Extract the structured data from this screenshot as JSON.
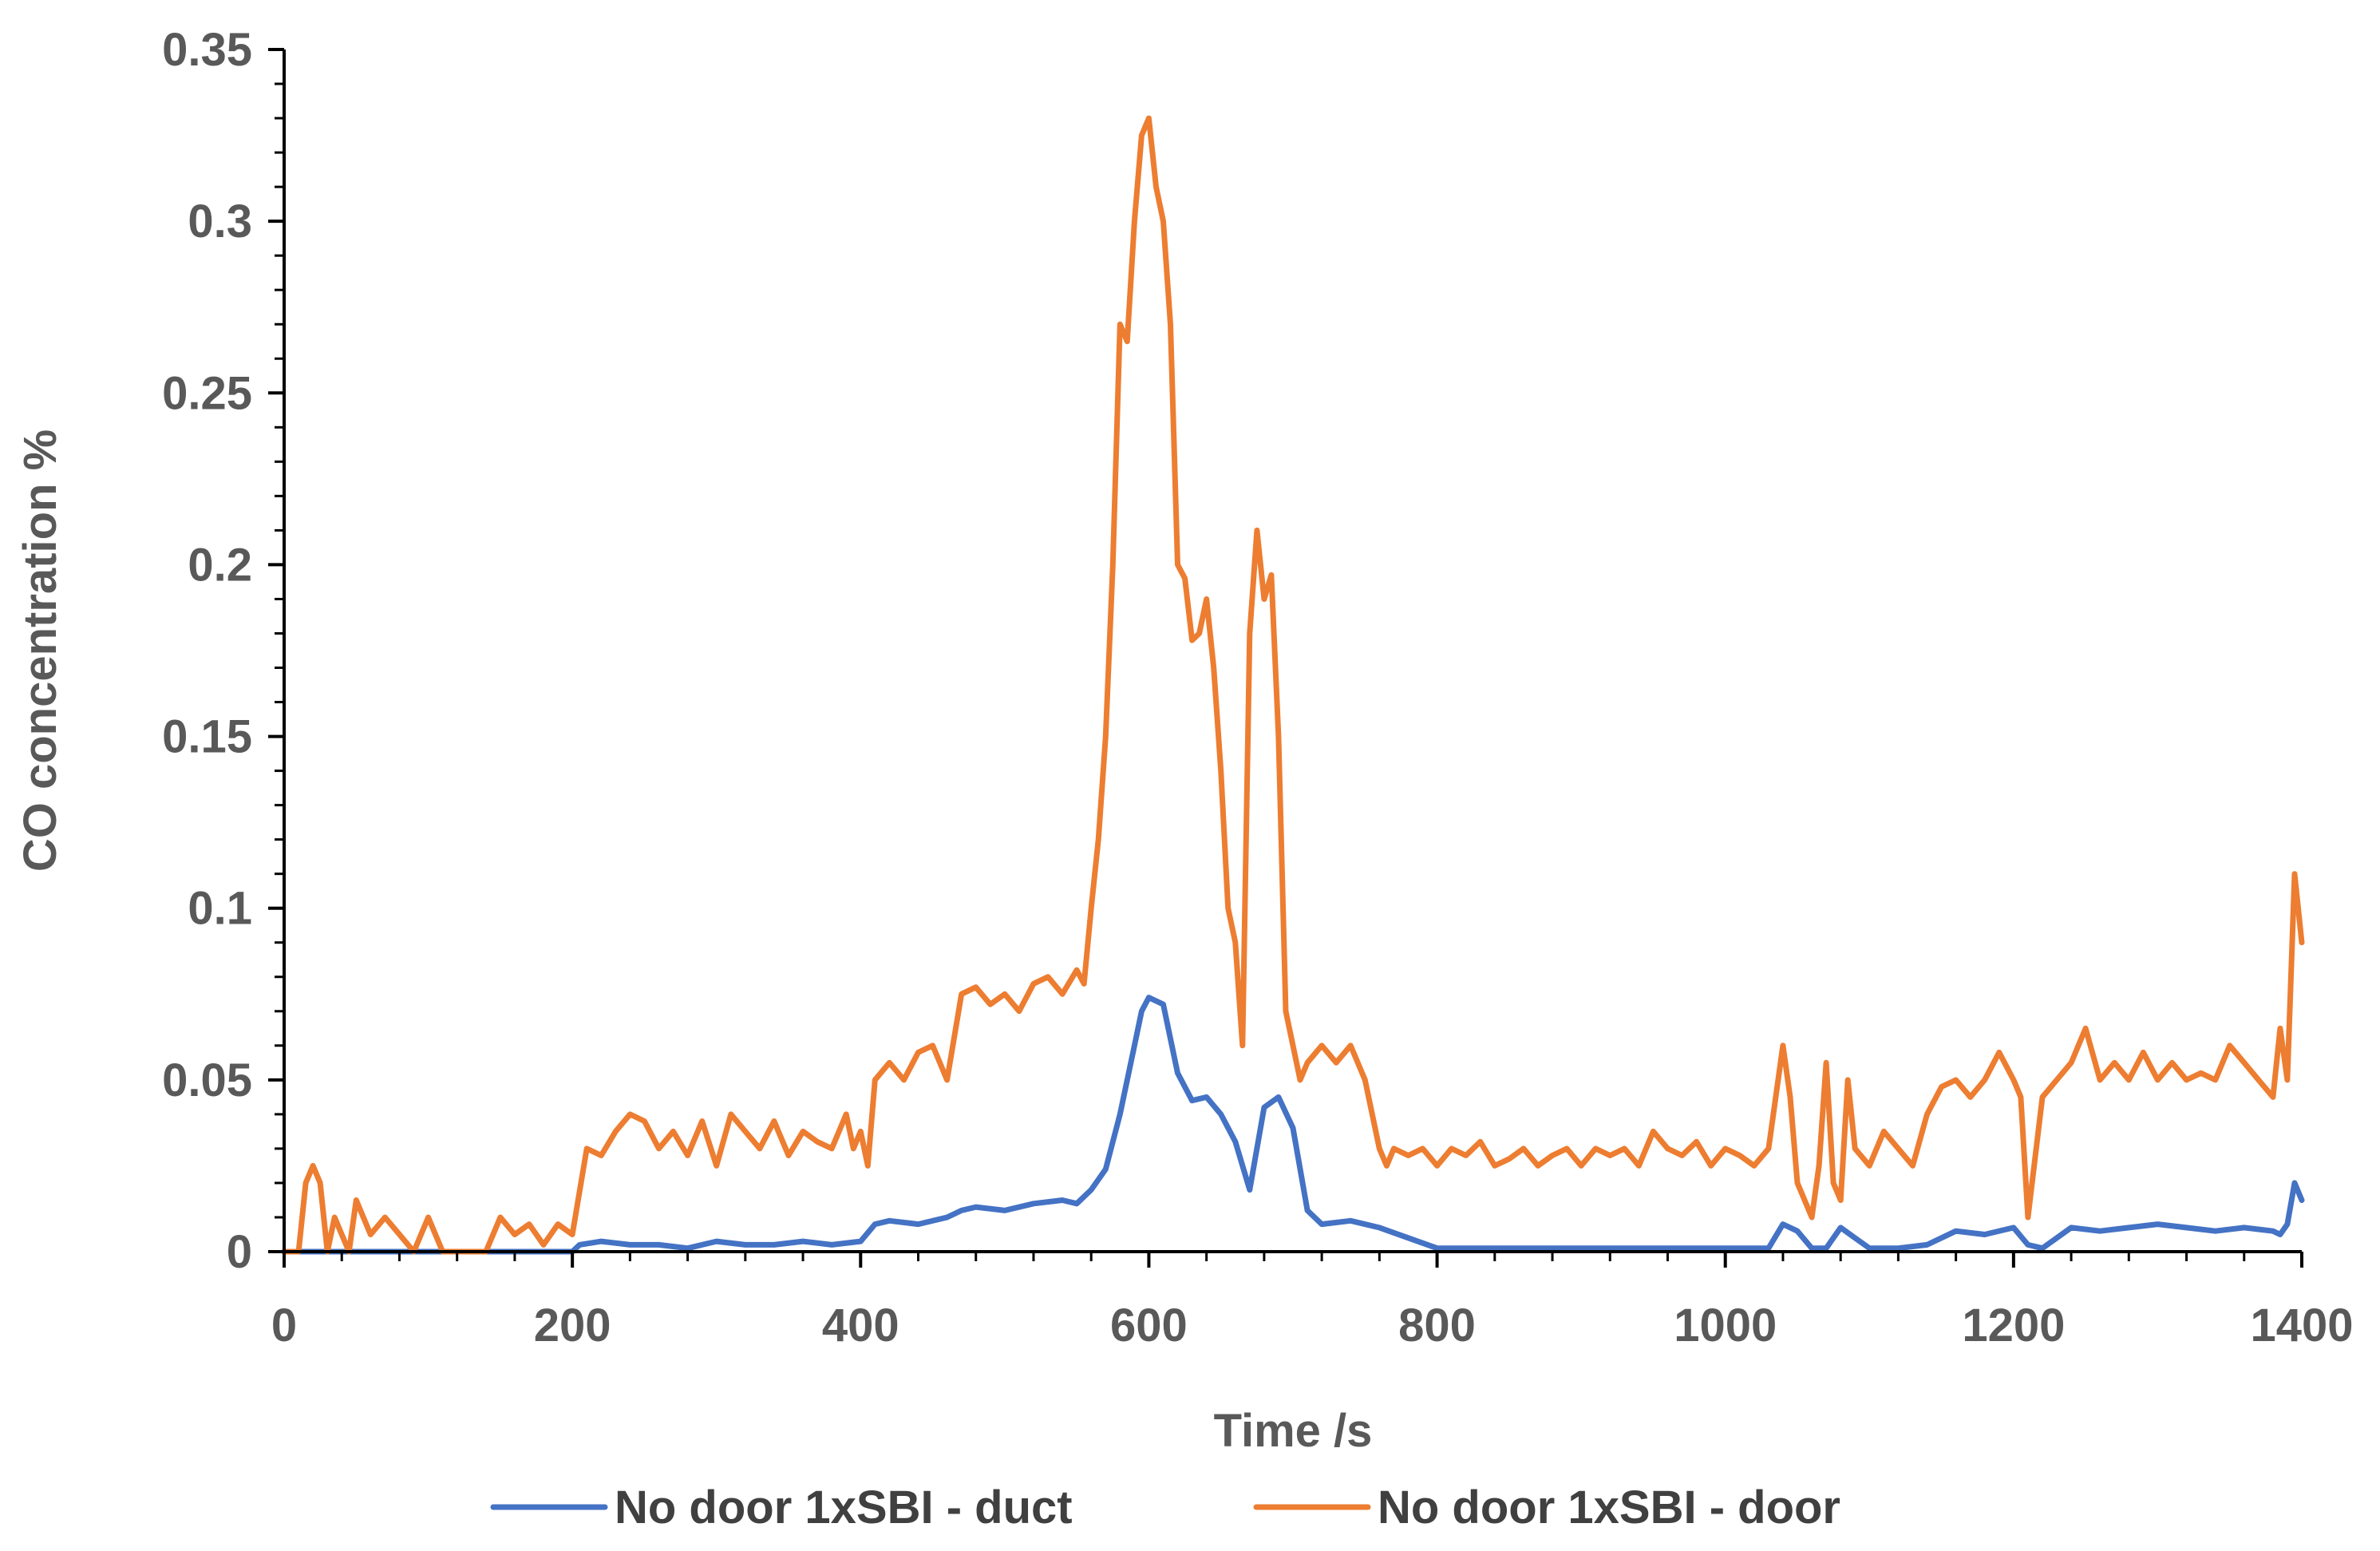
{
  "chart_data": {
    "type": "line",
    "xlabel": "Time /s",
    "ylabel": "CO concentration %",
    "xlim": [
      0,
      1400
    ],
    "ylim": [
      0,
      0.35
    ],
    "x_ticks": [
      "0",
      "200",
      "400",
      "600",
      "800",
      "1000",
      "1200",
      "1400"
    ],
    "y_ticks": [
      "0",
      "0.05",
      "0.1",
      "0.15",
      "0.2",
      "0.25",
      "0.3",
      "0.35"
    ],
    "grid": false,
    "legend": "bottom",
    "series": [
      {
        "name": "No door 1xSBI - duct",
        "color": "#4472C4",
        "x": [
          0,
          50,
          100,
          150,
          200,
          205,
          220,
          240,
          260,
          280,
          300,
          320,
          340,
          360,
          380,
          400,
          410,
          420,
          440,
          460,
          470,
          480,
          500,
          520,
          540,
          550,
          560,
          570,
          580,
          590,
          595,
          600,
          610,
          620,
          630,
          640,
          650,
          660,
          665,
          670,
          680,
          690,
          700,
          710,
          720,
          740,
          760,
          780,
          800,
          850,
          900,
          950,
          1000,
          1030,
          1040,
          1050,
          1060,
          1070,
          1080,
          1090,
          1100,
          1120,
          1140,
          1160,
          1180,
          1200,
          1210,
          1220,
          1240,
          1260,
          1280,
          1300,
          1320,
          1340,
          1360,
          1380,
          1385,
          1390,
          1395,
          1400
        ],
        "y": [
          0,
          0,
          0,
          0,
          0,
          0.002,
          0.003,
          0.002,
          0.002,
          0.001,
          0.003,
          0.002,
          0.002,
          0.003,
          0.002,
          0.003,
          0.008,
          0.009,
          0.008,
          0.01,
          0.012,
          0.013,
          0.012,
          0.014,
          0.015,
          0.014,
          0.018,
          0.024,
          0.04,
          0.06,
          0.07,
          0.074,
          0.072,
          0.052,
          0.044,
          0.045,
          0.04,
          0.032,
          0.025,
          0.018,
          0.042,
          0.045,
          0.036,
          0.012,
          0.008,
          0.009,
          0.007,
          0.004,
          0.001,
          0.001,
          0.001,
          0.001,
          0.001,
          0.001,
          0.008,
          0.006,
          0.001,
          0.001,
          0.007,
          0.004,
          0.001,
          0.001,
          0.002,
          0.006,
          0.005,
          0.007,
          0.002,
          0.001,
          0.007,
          0.006,
          0.007,
          0.008,
          0.007,
          0.006,
          0.007,
          0.006,
          0.005,
          0.008,
          0.02,
          0.015
        ]
      },
      {
        "name": "No door 1xSBI - door",
        "color": "#ED7D31",
        "x": [
          0,
          10,
          15,
          20,
          25,
          30,
          35,
          40,
          45,
          50,
          60,
          70,
          80,
          90,
          100,
          110,
          120,
          140,
          150,
          160,
          170,
          180,
          190,
          200,
          210,
          220,
          230,
          240,
          250,
          260,
          270,
          280,
          290,
          300,
          310,
          320,
          330,
          340,
          350,
          360,
          370,
          380,
          390,
          395,
          400,
          405,
          410,
          420,
          430,
          440,
          450,
          460,
          470,
          480,
          490,
          500,
          510,
          520,
          530,
          540,
          550,
          555,
          560,
          565,
          570,
          575,
          580,
          585,
          590,
          595,
          600,
          605,
          610,
          615,
          620,
          625,
          630,
          635,
          640,
          645,
          650,
          655,
          660,
          665,
          670,
          675,
          680,
          685,
          690,
          695,
          700,
          705,
          710,
          720,
          730,
          740,
          750,
          760,
          765,
          770,
          780,
          790,
          800,
          810,
          820,
          830,
          840,
          850,
          860,
          870,
          880,
          890,
          900,
          910,
          920,
          930,
          940,
          950,
          960,
          970,
          980,
          990,
          1000,
          1010,
          1020,
          1030,
          1040,
          1045,
          1050,
          1060,
          1065,
          1070,
          1075,
          1080,
          1085,
          1090,
          1100,
          1110,
          1120,
          1130,
          1140,
          1150,
          1160,
          1170,
          1180,
          1190,
          1200,
          1205,
          1210,
          1220,
          1230,
          1240,
          1250,
          1260,
          1270,
          1280,
          1290,
          1300,
          1310,
          1320,
          1330,
          1340,
          1350,
          1360,
          1370,
          1380,
          1385,
          1390,
          1395,
          1400
        ],
        "y": [
          0,
          0,
          0.02,
          0.025,
          0.02,
          0,
          0.01,
          0.005,
          0,
          0.015,
          0.005,
          0.01,
          0.005,
          0,
          0.01,
          0,
          0,
          0,
          0.01,
          0.005,
          0.008,
          0.002,
          0.008,
          0.005,
          0.03,
          0.028,
          0.035,
          0.04,
          0.038,
          0.03,
          0.035,
          0.028,
          0.038,
          0.025,
          0.04,
          0.035,
          0.03,
          0.038,
          0.028,
          0.035,
          0.032,
          0.03,
          0.04,
          0.03,
          0.035,
          0.025,
          0.05,
          0.055,
          0.05,
          0.058,
          0.06,
          0.05,
          0.075,
          0.077,
          0.072,
          0.075,
          0.07,
          0.078,
          0.08,
          0.075,
          0.082,
          0.078,
          0.1,
          0.12,
          0.15,
          0.2,
          0.27,
          0.265,
          0.3,
          0.325,
          0.33,
          0.31,
          0.3,
          0.27,
          0.2,
          0.196,
          0.178,
          0.18,
          0.19,
          0.17,
          0.14,
          0.1,
          0.09,
          0.06,
          0.18,
          0.21,
          0.19,
          0.197,
          0.15,
          0.07,
          0.06,
          0.05,
          0.055,
          0.06,
          0.055,
          0.06,
          0.05,
          0.03,
          0.025,
          0.03,
          0.028,
          0.03,
          0.025,
          0.03,
          0.028,
          0.032,
          0.025,
          0.027,
          0.03,
          0.025,
          0.028,
          0.03,
          0.025,
          0.03,
          0.028,
          0.03,
          0.025,
          0.035,
          0.03,
          0.028,
          0.032,
          0.025,
          0.03,
          0.028,
          0.025,
          0.03,
          0.06,
          0.045,
          0.02,
          0.01,
          0.025,
          0.055,
          0.02,
          0.015,
          0.05,
          0.03,
          0.025,
          0.035,
          0.03,
          0.025,
          0.04,
          0.048,
          0.05,
          0.045,
          0.05,
          0.058,
          0.05,
          0.045,
          0.01,
          0.045,
          0.05,
          0.055,
          0.065,
          0.05,
          0.055,
          0.05,
          0.058,
          0.05,
          0.055,
          0.05,
          0.052,
          0.05,
          0.06,
          0.055,
          0.05,
          0.045,
          0.065,
          0.05,
          0.11,
          0.09
        ]
      }
    ]
  }
}
